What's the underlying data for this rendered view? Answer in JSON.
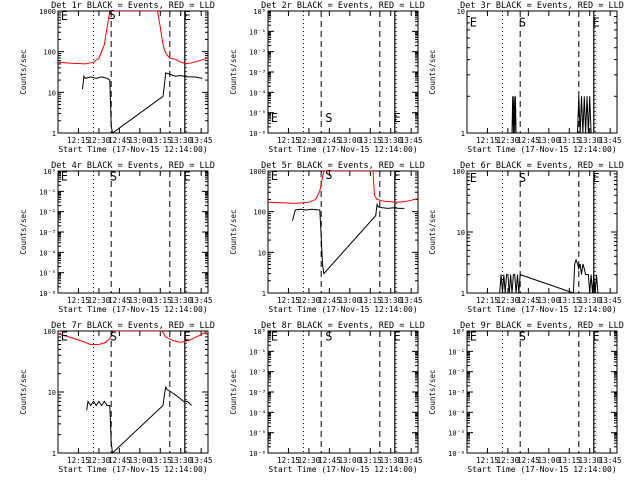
{
  "shared": {
    "y_axis_label": "Counts/sec",
    "x_axis_label": "Start Time (17-Nov-15 12:14:00)",
    "x_ticks": [
      "12:15",
      "12:30",
      "12:45",
      "13:00",
      "13:15",
      "13:30",
      "13:45"
    ],
    "tick_minutes": [
      15,
      30,
      45,
      60,
      75,
      90,
      105
    ],
    "marker_minutes": {
      "dotted": [
        26,
        94
      ],
      "dashed": [
        39,
        82
      ],
      "solid": [
        93
      ]
    },
    "events_color": "#000000",
    "lld_color": "#ff0000"
  },
  "chart_data": [
    {
      "type": "line",
      "title": "Det 1r BLACK = Events, RED = LLD",
      "ylim": [
        1,
        1000
      ],
      "ytick_labels": [
        "1",
        "10",
        "100",
        "1000"
      ],
      "letters": [
        {
          "t": "E",
          "min": 2,
          "y": 800
        },
        {
          "t": "S",
          "min": 37,
          "y": 850
        },
        {
          "t": "E",
          "min": 92,
          "y": 800
        }
      ],
      "series": [
        {
          "role": "lld",
          "x": [
            0,
            10,
            20,
            26,
            30,
            34,
            36,
            38,
            73,
            75,
            77,
            79,
            82,
            86,
            90,
            94,
            100,
            110
          ],
          "y": [
            55,
            52,
            50,
            55,
            70,
            150,
            400,
            1000,
            1000,
            400,
            150,
            90,
            70,
            65,
            55,
            50,
            55,
            70
          ]
        },
        {
          "role": "events",
          "x": [
            18,
            19,
            20,
            24,
            28,
            32,
            36,
            38,
            39,
            40,
            77,
            78,
            79,
            82,
            86,
            90,
            94,
            100,
            106
          ],
          "y": [
            12,
            25,
            22,
            24,
            22,
            24,
            22,
            20,
            1.5,
            1,
            8,
            15,
            30,
            28,
            25,
            26,
            24,
            24,
            22
          ]
        }
      ]
    },
    {
      "type": "line",
      "title": "Det 2r BLACK = Events, RED = LLD",
      "ylim": [
        1e-06,
        1
      ],
      "ytick_labels": [
        "10⁻⁶",
        "10⁻⁵",
        "10⁻⁴",
        "10⁻³",
        "10⁻²",
        "10⁻¹",
        "10⁰"
      ],
      "letters": [
        {
          "t": "E",
          "min": 2,
          "y": 6e-06
        },
        {
          "t": "S",
          "min": 42,
          "y": 6e-06
        },
        {
          "t": "E",
          "min": 92,
          "y": 6e-06
        }
      ],
      "series": []
    },
    {
      "type": "line",
      "title": "Det 3r BLACK = Events, RED = LLD",
      "ylim": [
        1,
        10
      ],
      "ytick_labels": [
        "1",
        "10"
      ],
      "letters": [
        {
          "t": "E",
          "min": 2,
          "y": 8.2
        },
        {
          "t": "S",
          "min": 38,
          "y": 8.2
        },
        {
          "t": "E",
          "min": 92,
          "y": 8.2
        }
      ],
      "series": [
        {
          "role": "events",
          "x": [
            33,
            33.5,
            34,
            34.5,
            35,
            35.5,
            36,
            81,
            82,
            83,
            84,
            85,
            86,
            87,
            88,
            89,
            90,
            91
          ],
          "y": [
            1,
            2,
            1,
            2,
            1,
            2,
            1,
            1,
            2,
            1,
            2,
            1,
            2,
            1,
            2,
            1,
            2,
            1
          ]
        }
      ]
    },
    {
      "type": "line",
      "title": "Det 4r BLACK = Events, RED = LLD",
      "ylim": [
        1e-06,
        1
      ],
      "ytick_labels": [
        "10⁻⁶",
        "10⁻⁵",
        "10⁻⁴",
        "10⁻³",
        "10⁻²",
        "10⁻¹",
        "10⁰"
      ],
      "letters": [
        {
          "t": "E",
          "min": 2,
          "y": 0.6
        },
        {
          "t": "S",
          "min": 38,
          "y": 0.6
        },
        {
          "t": "E",
          "min": 92,
          "y": 0.6
        }
      ],
      "series": []
    },
    {
      "type": "line",
      "title": "Det 5r BLACK = Events, RED = LLD",
      "ylim": [
        1,
        1000
      ],
      "ytick_labels": [
        "1",
        "10",
        "100",
        "1000"
      ],
      "letters": [
        {
          "t": "E",
          "min": 2,
          "y": 800
        },
        {
          "t": "S",
          "min": 42,
          "y": 850
        },
        {
          "t": "E",
          "min": 92,
          "y": 800
        }
      ],
      "series": [
        {
          "role": "lld",
          "x": [
            0,
            10,
            20,
            30,
            35,
            38,
            40,
            41,
            77,
            78,
            80,
            85,
            90,
            95,
            100,
            110
          ],
          "y": [
            170,
            165,
            160,
            170,
            200,
            320,
            700,
            1000,
            1000,
            250,
            200,
            180,
            175,
            170,
            175,
            210
          ]
        },
        {
          "role": "events",
          "x": [
            18,
            20,
            24,
            28,
            32,
            36,
            38,
            39,
            40,
            41,
            79,
            80,
            81,
            84,
            88,
            92,
            96,
            100
          ],
          "y": [
            60,
            110,
            115,
            110,
            115,
            112,
            110,
            25,
            5,
            3,
            80,
            150,
            130,
            125,
            120,
            125,
            120,
            120
          ]
        }
      ]
    },
    {
      "type": "line",
      "title": "Det 6r BLACK = Events, RED = LLD",
      "ylim": [
        1,
        100
      ],
      "ytick_labels": [
        "1",
        "10",
        "100"
      ],
      "letters": [
        {
          "t": "E",
          "min": 2,
          "y": 80
        },
        {
          "t": "S",
          "min": 38,
          "y": 80
        },
        {
          "t": "E",
          "min": 92,
          "y": 80
        }
      ],
      "series": [
        {
          "role": "events",
          "x": [
            24,
            25,
            26,
            27,
            28,
            29,
            30,
            31,
            32,
            33,
            34,
            35,
            36,
            37,
            38,
            39,
            78,
            79,
            80,
            81,
            82,
            83,
            84,
            85,
            86,
            87,
            88,
            89,
            90,
            91,
            92,
            93,
            94,
            95,
            96,
            97
          ],
          "y": [
            1,
            2,
            1,
            2,
            1,
            2,
            2,
            1,
            2,
            1,
            2,
            2,
            1,
            2,
            1,
            2,
            1,
            3,
            3.5,
            3,
            2.5,
            3,
            2,
            3,
            2.5,
            2,
            2,
            2,
            1,
            2,
            1,
            2,
            1,
            2,
            1,
            1
          ]
        }
      ]
    },
    {
      "type": "line",
      "title": "Det 7r BLACK = Events, RED = LLD",
      "ylim": [
        1,
        100
      ],
      "ytick_labels": [
        "1",
        "10",
        "100"
      ],
      "letters": [
        {
          "t": "E",
          "min": 2,
          "y": 85
        },
        {
          "t": "S",
          "min": 38,
          "y": 85
        },
        {
          "t": "E",
          "min": 92,
          "y": 85
        }
      ],
      "series": [
        {
          "role": "lld",
          "x": [
            0,
            8,
            16,
            24,
            30,
            35,
            38,
            40,
            41,
            76,
            77,
            79,
            84,
            90,
            96,
            104,
            110
          ],
          "y": [
            90,
            80,
            70,
            60,
            60,
            65,
            75,
            95,
            100,
            100,
            95,
            80,
            70,
            65,
            70,
            85,
            100
          ]
        },
        {
          "role": "events",
          "x": [
            21,
            22,
            24,
            26,
            28,
            30,
            32,
            34,
            36,
            38,
            39,
            40,
            77,
            78,
            79,
            80,
            83,
            86,
            89,
            92,
            95,
            98
          ],
          "y": [
            5,
            7,
            6,
            7,
            6,
            7,
            6,
            7,
            6,
            6,
            1.5,
            1,
            6,
            9,
            12,
            11,
            10,
            9,
            8,
            7,
            7,
            6
          ]
        }
      ]
    },
    {
      "type": "line",
      "title": "Det 8r BLACK = Events, RED = LLD",
      "ylim": [
        1e-06,
        1
      ],
      "ytick_labels": [
        "10⁻⁶",
        "10⁻⁵",
        "10⁻⁴",
        "10⁻³",
        "10⁻²",
        "10⁻¹",
        "10⁰"
      ],
      "letters": [
        {
          "t": "E",
          "min": 2,
          "y": 0.6
        },
        {
          "t": "S",
          "min": 42,
          "y": 0.6
        },
        {
          "t": "E",
          "min": 92,
          "y": 0.6
        }
      ],
      "series": []
    },
    {
      "type": "line",
      "title": "Det 9r BLACK = Events, RED = LLD",
      "ylim": [
        1e-06,
        1
      ],
      "ytick_labels": [
        "10⁻⁶",
        "10⁻⁵",
        "10⁻⁴",
        "10⁻³",
        "10⁻²",
        "10⁻¹",
        "10⁰"
      ],
      "letters": [
        {
          "t": "E",
          "min": 2,
          "y": 0.6
        },
        {
          "t": "S",
          "min": 38,
          "y": 0.6
        },
        {
          "t": "E",
          "min": 92,
          "y": 0.6
        }
      ],
      "series": []
    }
  ]
}
